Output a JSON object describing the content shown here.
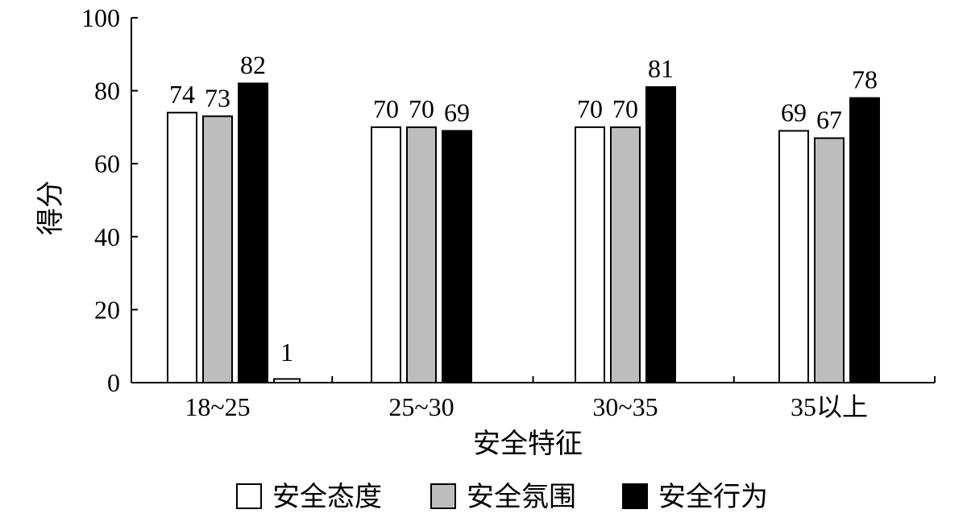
{
  "chart_data": {
    "type": "bar",
    "title": "",
    "xlabel": "安全特征",
    "ylabel": "得分",
    "ylim": [
      0,
      100
    ],
    "yticks": [
      0,
      20,
      40,
      60,
      80,
      100
    ],
    "categories": [
      "18~25",
      "25~30",
      "30~35",
      "35以上"
    ],
    "series": [
      {
        "name": "安全态度",
        "color": "#ffffff",
        "values": [
          74,
          70,
          70,
          69
        ],
        "labels": [
          "74",
          "70",
          "70",
          "69"
        ]
      },
      {
        "name": "安全氛围",
        "color": "#bdbdbd",
        "values": [
          73,
          70,
          70,
          67
        ],
        "labels": [
          "73",
          "70",
          "70",
          "67"
        ]
      },
      {
        "name": "安全行为",
        "color": "#000000",
        "values": [
          82,
          69,
          81,
          78
        ],
        "labels": [
          "82",
          "69",
          "81",
          "78"
        ]
      }
    ],
    "extra_bar": {
      "category": "18~25",
      "value": 1,
      "label": "1",
      "color": "#ffffff"
    },
    "grid": false,
    "legend_position": "bottom"
  }
}
